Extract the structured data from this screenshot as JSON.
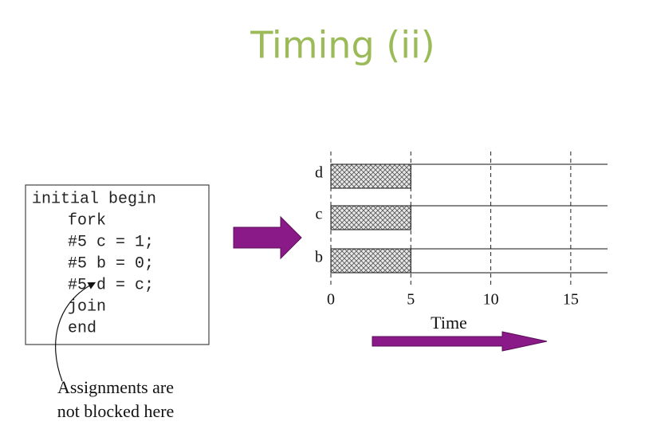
{
  "title": "Timing (ii)",
  "code": [
    "initial begin",
    "fork",
    "#5 c = 1;",
    "#5 b = 0;",
    "#5 d = c;",
    "join",
    "end"
  ],
  "annotation": [
    "Assignments are",
    "not blocked here"
  ],
  "timing": {
    "xlabel": "Time",
    "xlim": [
      0,
      17.3
    ],
    "xticks": [
      0,
      5,
      10,
      15
    ],
    "signals": [
      {
        "name": "d",
        "hatch": [
          0,
          5
        ]
      },
      {
        "name": "c",
        "hatch": [
          0,
          5
        ]
      },
      {
        "name": "b",
        "hatch": [
          0,
          5
        ]
      }
    ]
  }
}
